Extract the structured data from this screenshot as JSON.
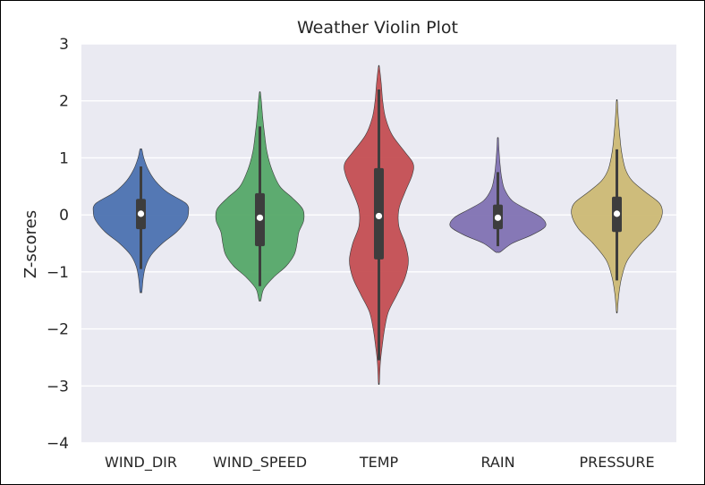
{
  "chart_data": {
    "type": "violin",
    "title": "Weather Violin Plot",
    "xlabel": "",
    "ylabel": "Z-scores",
    "ylim": [
      -4,
      3
    ],
    "yticks": [
      3,
      2,
      1,
      0,
      -1,
      -2,
      -3,
      -4
    ],
    "ytick_labels": [
      "3",
      "2",
      "1",
      "0",
      "−1",
      "−2",
      "−3",
      "−4"
    ],
    "grid": true,
    "background": "#EAEAF2",
    "categories": [
      "WIND_DIR",
      "WIND_SPEED",
      "TEMP",
      "RAIN",
      "PRESSURE"
    ],
    "series": [
      {
        "category": "WIND_DIR",
        "color": "#4C72B0",
        "min": -1.35,
        "max": 1.15,
        "q1": -0.25,
        "median": 0.02,
        "q3": 0.28,
        "whisker_low": -0.95,
        "whisker_high": 0.85,
        "density": [
          [
            -1.35,
            0.02
          ],
          [
            -1.1,
            0.05
          ],
          [
            -0.9,
            0.1
          ],
          [
            -0.7,
            0.22
          ],
          [
            -0.5,
            0.45
          ],
          [
            -0.3,
            0.75
          ],
          [
            -0.1,
            0.95
          ],
          [
            0.05,
            1.0
          ],
          [
            0.2,
            0.95
          ],
          [
            0.4,
            0.55
          ],
          [
            0.6,
            0.3
          ],
          [
            0.8,
            0.15
          ],
          [
            1.0,
            0.06
          ],
          [
            1.15,
            0.02
          ]
        ]
      },
      {
        "category": "WIND_SPEED",
        "color": "#55A868",
        "min": -1.5,
        "max": 2.15,
        "q1": -0.55,
        "median": -0.05,
        "q3": 0.38,
        "whisker_low": -1.25,
        "whisker_high": 1.55,
        "density": [
          [
            -1.5,
            0.02
          ],
          [
            -1.3,
            0.08
          ],
          [
            -1.1,
            0.28
          ],
          [
            -0.9,
            0.55
          ],
          [
            -0.7,
            0.72
          ],
          [
            -0.5,
            0.78
          ],
          [
            -0.3,
            0.82
          ],
          [
            -0.1,
            0.92
          ],
          [
            0.1,
            0.9
          ],
          [
            0.3,
            0.68
          ],
          [
            0.5,
            0.42
          ],
          [
            0.8,
            0.25
          ],
          [
            1.1,
            0.15
          ],
          [
            1.4,
            0.1
          ],
          [
            1.7,
            0.06
          ],
          [
            2.0,
            0.03
          ],
          [
            2.15,
            0.01
          ]
        ]
      },
      {
        "category": "TEMP",
        "color": "#C44E52",
        "min": -2.95,
        "max": 2.6,
        "q1": -0.78,
        "median": -0.02,
        "q3": 0.82,
        "whisker_low": -2.55,
        "whisker_high": 2.2,
        "density": [
          [
            -2.95,
            0.01
          ],
          [
            -2.6,
            0.03
          ],
          [
            -2.3,
            0.07
          ],
          [
            -2.0,
            0.12
          ],
          [
            -1.7,
            0.2
          ],
          [
            -1.4,
            0.38
          ],
          [
            -1.1,
            0.55
          ],
          [
            -0.8,
            0.62
          ],
          [
            -0.5,
            0.55
          ],
          [
            -0.2,
            0.42
          ],
          [
            0.1,
            0.42
          ],
          [
            0.4,
            0.55
          ],
          [
            0.7,
            0.7
          ],
          [
            0.9,
            0.72
          ],
          [
            1.1,
            0.55
          ],
          [
            1.4,
            0.28
          ],
          [
            1.7,
            0.14
          ],
          [
            2.0,
            0.08
          ],
          [
            2.3,
            0.05
          ],
          [
            2.6,
            0.01
          ]
        ]
      },
      {
        "category": "RAIN",
        "color": "#8172B2",
        "min": -0.65,
        "max": 1.35,
        "q1": -0.25,
        "median": -0.05,
        "q3": 0.18,
        "whisker_low": -0.55,
        "whisker_high": 0.75,
        "density": [
          [
            -0.65,
            0.05
          ],
          [
            -0.5,
            0.3
          ],
          [
            -0.35,
            0.72
          ],
          [
            -0.2,
            1.0
          ],
          [
            -0.05,
            0.92
          ],
          [
            0.1,
            0.6
          ],
          [
            0.25,
            0.3
          ],
          [
            0.45,
            0.14
          ],
          [
            0.65,
            0.08
          ],
          [
            0.85,
            0.05
          ],
          [
            1.05,
            0.03
          ],
          [
            1.25,
            0.015
          ],
          [
            1.35,
            0.01
          ]
        ]
      },
      {
        "category": "PRESSURE",
        "color": "#CCB974",
        "min": -1.7,
        "max": 2.0,
        "q1": -0.3,
        "median": 0.02,
        "q3": 0.32,
        "whisker_low": -1.15,
        "whisker_high": 1.15,
        "density": [
          [
            -1.7,
            0.01
          ],
          [
            -1.4,
            0.04
          ],
          [
            -1.1,
            0.1
          ],
          [
            -0.8,
            0.22
          ],
          [
            -0.5,
            0.5
          ],
          [
            -0.25,
            0.8
          ],
          [
            0.0,
            0.95
          ],
          [
            0.2,
            0.9
          ],
          [
            0.4,
            0.6
          ],
          [
            0.6,
            0.32
          ],
          [
            0.8,
            0.18
          ],
          [
            1.1,
            0.1
          ],
          [
            1.4,
            0.06
          ],
          [
            1.7,
            0.03
          ],
          [
            2.0,
            0.01
          ]
        ]
      }
    ]
  }
}
